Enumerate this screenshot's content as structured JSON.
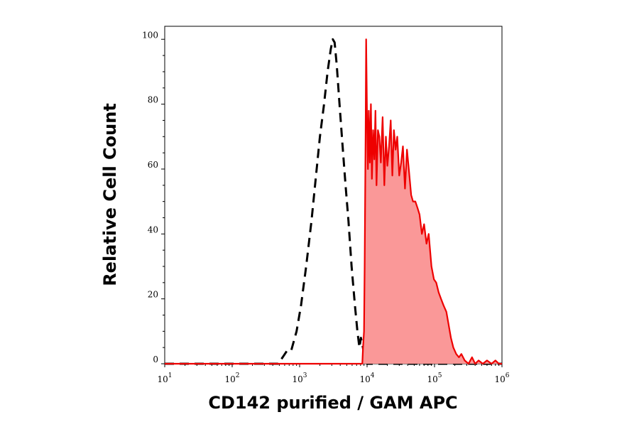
{
  "chart_data": {
    "type": "area",
    "title": "",
    "xlabel": "CD142 purified / GAM APC",
    "ylabel": "Relative Cell Count",
    "x_scale": "log",
    "xlim": [
      10,
      1000000
    ],
    "ylim": [
      0,
      104
    ],
    "grid": false,
    "x_ticks": [
      {
        "value": 10,
        "base": "10",
        "exp": "1"
      },
      {
        "value": 100,
        "base": "10",
        "exp": "2"
      },
      {
        "value": 1000,
        "base": "10",
        "exp": "3"
      },
      {
        "value": 10000,
        "base": "10",
        "exp": "4"
      },
      {
        "value": 100000,
        "base": "10",
        "exp": "5"
      },
      {
        "value": 1000000,
        "base": "10",
        "exp": "6"
      }
    ],
    "y_ticks": [
      {
        "value": 0,
        "label": "0"
      },
      {
        "value": 20,
        "label": "20"
      },
      {
        "value": 40,
        "label": "40"
      },
      {
        "value": 60,
        "label": "60"
      },
      {
        "value": 80,
        "label": "80"
      },
      {
        "value": 100,
        "label": "100"
      }
    ],
    "series": [
      {
        "style": "dashed",
        "color": "#000000",
        "fill": "none",
        "x": [
          10,
          300,
          480,
          560,
          650,
          750,
          900,
          1050,
          1250,
          1500,
          1750,
          2000,
          2300,
          2600,
          2900,
          3100,
          3300,
          3550,
          3900,
          4300,
          4800,
          5300,
          5900,
          6600,
          7200,
          7700,
          8100,
          8500,
          9200,
          10000,
          30000,
          1000000
        ],
        "y": [
          0,
          0,
          0,
          2,
          4,
          4,
          10,
          18,
          30,
          44,
          58,
          70,
          80,
          90,
          97,
          100,
          99,
          92,
          80,
          68,
          55,
          44,
          30,
          18,
          10,
          5,
          8,
          6,
          2,
          0,
          0,
          0
        ]
      },
      {
        "style": "solid",
        "color": "#ee0000",
        "fill": "#fa9898",
        "x": [
          10,
          8000,
          8500,
          8700,
          9000,
          9200,
          9500,
          9700,
          10000,
          10300,
          10600,
          11000,
          11400,
          11800,
          12300,
          12800,
          13300,
          13800,
          14500,
          15200,
          16000,
          17000,
          18000,
          19000,
          20000,
          21200,
          22400,
          23700,
          25000,
          26500,
          28000,
          30000,
          32000,
          34000,
          36500,
          39000,
          42000,
          45000,
          48000,
          52000,
          56000,
          60000,
          65000,
          70000,
          76000,
          82000,
          90000,
          98000,
          106000,
          115000,
          125000,
          136000,
          150000,
          162000,
          175000,
          190000,
          210000,
          230000,
          250000,
          280000,
          320000,
          360000,
          400000,
          450000,
          520000,
          600000,
          700000,
          800000,
          900000,
          1000000
        ],
        "y": [
          0,
          0,
          0,
          5,
          10,
          30,
          70,
          100,
          75,
          60,
          78,
          62,
          80,
          57,
          72,
          63,
          78,
          55,
          72,
          70,
          62,
          76,
          55,
          70,
          61,
          67,
          75,
          58,
          72,
          66,
          70,
          58,
          62,
          67,
          54,
          66,
          59,
          52,
          50,
          50,
          48,
          46,
          40,
          43,
          37,
          40,
          30,
          26,
          25,
          22,
          20,
          18,
          16,
          12,
          8,
          5,
          3,
          2,
          3,
          1,
          0,
          2,
          0,
          1,
          0,
          1,
          0,
          1,
          0,
          0
        ]
      }
    ]
  }
}
